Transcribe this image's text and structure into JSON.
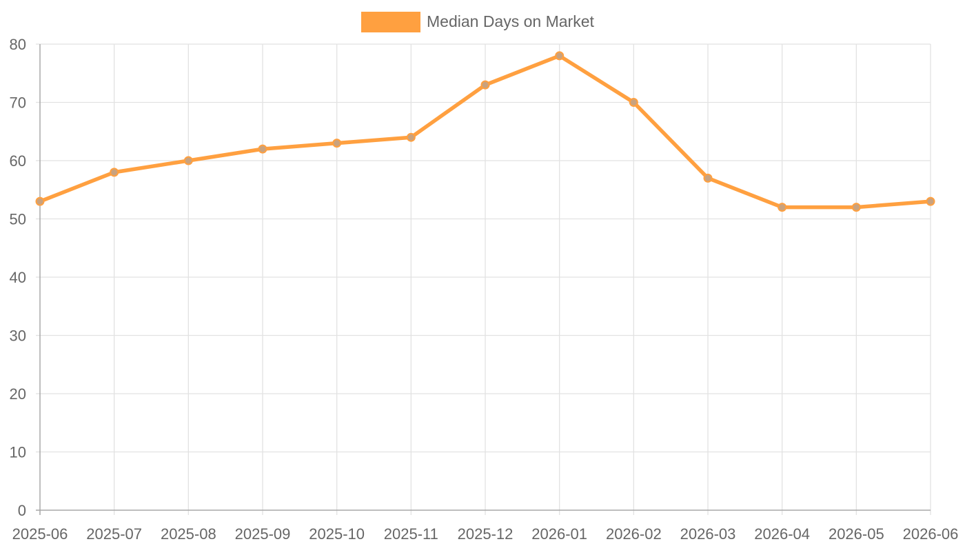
{
  "chart_data": {
    "type": "line",
    "categories": [
      "2025-06",
      "2025-07",
      "2025-08",
      "2025-09",
      "2025-10",
      "2025-11",
      "2025-12",
      "2026-01",
      "2026-02",
      "2026-03",
      "2026-04",
      "2026-05",
      "2026-06"
    ],
    "series": [
      {
        "name": "Median Days on Market",
        "values": [
          53,
          58,
          60,
          62,
          63,
          64,
          73,
          78,
          70,
          57,
          52,
          52,
          53
        ],
        "color": "#ffa040",
        "point_color": "#c9a27e"
      }
    ],
    "ylim": [
      0,
      80
    ],
    "yticks": [
      0,
      10,
      20,
      30,
      40,
      50,
      60,
      70,
      80
    ],
    "grid": true,
    "legend_position": "top-center",
    "colors": {
      "grid": "#e2e2e2",
      "axis": "#a8a8a8",
      "text": "#666666"
    }
  }
}
